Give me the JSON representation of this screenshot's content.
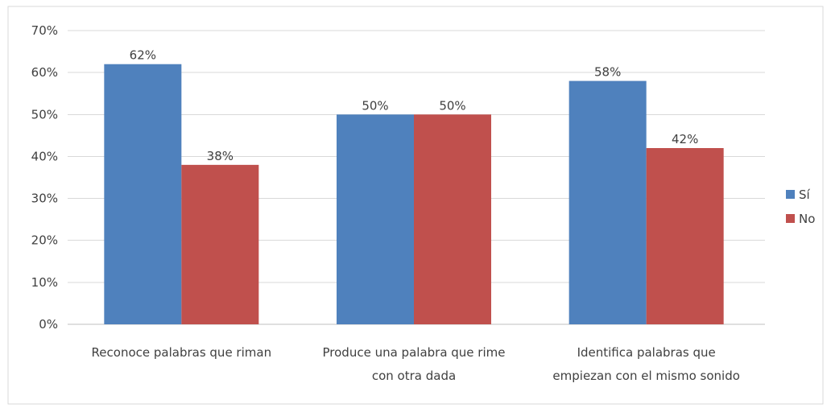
{
  "chart_data": {
    "type": "bar",
    "categories": [
      [
        "Reconoce palabras que riman"
      ],
      [
        "Produce una palabra que rime",
        "con otra dada"
      ],
      [
        "Identifica palabras que",
        "empiezan con el mismo sonido"
      ]
    ],
    "series": [
      {
        "name": "Sí",
        "color": "#4f81bd",
        "values": [
          62,
          50,
          58
        ],
        "labels": [
          "62%",
          "50%",
          "58%"
        ]
      },
      {
        "name": "No",
        "color": "#c0504d",
        "values": [
          38,
          50,
          42
        ],
        "labels": [
          "38%",
          "50%",
          "42%"
        ]
      }
    ],
    "y_ticks": [
      "0%",
      "10%",
      "20%",
      "30%",
      "40%",
      "50%",
      "60%",
      "70%"
    ],
    "ylim": [
      0,
      70
    ],
    "grid": true,
    "legend_position": "right"
  }
}
